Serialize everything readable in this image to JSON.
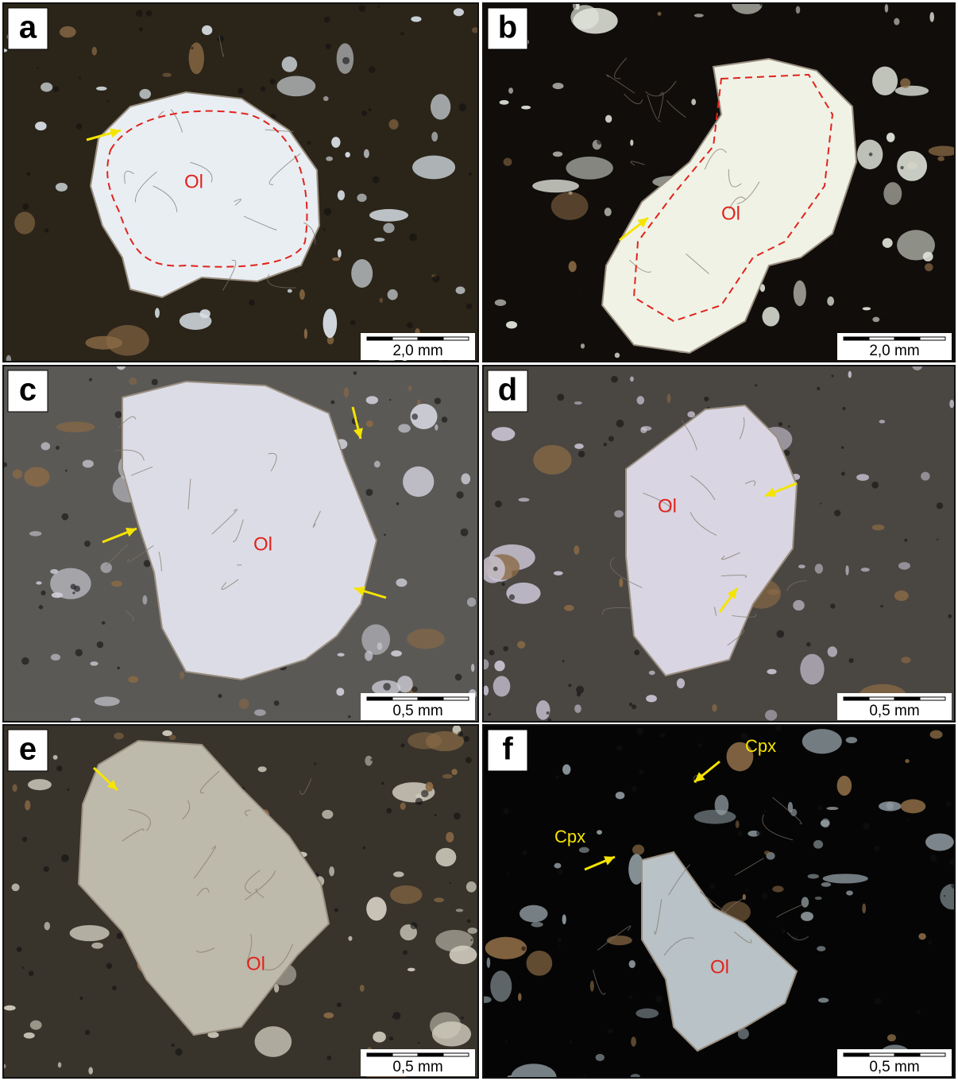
{
  "panels": [
    {
      "letter": "a",
      "mineral": "Ol",
      "scale": "2,0 mm"
    },
    {
      "letter": "b",
      "mineral": "Ol",
      "scale": "2,0 mm"
    },
    {
      "letter": "c",
      "mineral": "Ol",
      "scale": "0,5 mm"
    },
    {
      "letter": "d",
      "mineral": "Ol",
      "scale": "0,5 mm"
    },
    {
      "letter": "e",
      "mineral": "Ol",
      "scale": "0,5 mm"
    },
    {
      "letter": "f",
      "mineral": "Ol",
      "scale": "0,5 mm",
      "annotations": [
        "Cpx",
        "Cpx"
      ]
    }
  ]
}
